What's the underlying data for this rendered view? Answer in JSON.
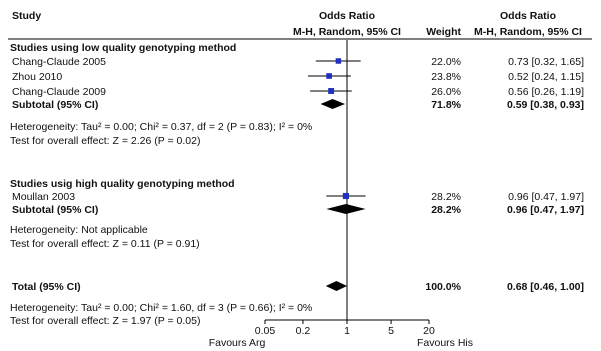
{
  "header": {
    "study": "Study",
    "or_title": "Odds Ratio",
    "or_method": "M-H, Random, 95% CI",
    "weight": "Weight",
    "or2_title": "Odds Ratio",
    "or2_method": "M-H, Random, 95% CI"
  },
  "groups": [
    {
      "title": "Studies using low quality genotyping method",
      "studies": [
        {
          "name": "Chang-Claude 2005",
          "weight": "22.0%",
          "ci_text": "0.73 [0.32, 1.65]",
          "or": 0.73,
          "lo": 0.32,
          "hi": 1.65
        },
        {
          "name": "Zhou 2010",
          "weight": "23.8%",
          "ci_text": "0.52 [0.24, 1.15]",
          "or": 0.52,
          "lo": 0.24,
          "hi": 1.15
        },
        {
          "name": "Chang-Claude 2009",
          "weight": "26.0%",
          "ci_text": "0.56 [0.26, 1.19]",
          "or": 0.56,
          "lo": 0.26,
          "hi": 1.19
        }
      ],
      "subtotal": {
        "label": "Subtotal (95% CI)",
        "weight": "71.8%",
        "ci_text": "0.59 [0.38, 0.93]",
        "or": 0.59,
        "lo": 0.38,
        "hi": 0.93
      },
      "heterogeneity": "Heterogeneity: Tau² = 0.00; Chi² = 0.37, df = 2 (P = 0.83); I² = 0%",
      "overall": "Test for overall effect: Z = 2.26 (P = 0.02)"
    },
    {
      "title": "Studies usig high quality genotyping method",
      "studies": [
        {
          "name": "Moullan 2003",
          "weight": "28.2%",
          "ci_text": "0.96 [0.47, 1.97]",
          "or": 0.96,
          "lo": 0.47,
          "hi": 1.97
        }
      ],
      "subtotal": {
        "label": "Subtotal (95% CI)",
        "weight": "28.2%",
        "ci_text": "0.96 [0.47, 1.97]",
        "or": 0.96,
        "lo": 0.47,
        "hi": 1.97
      },
      "heterogeneity": "Heterogeneity: Not applicable",
      "overall": "Test for overall effect: Z = 0.11 (P = 0.91)"
    }
  ],
  "total": {
    "label": "Total (95% CI)",
    "weight": "100.0%",
    "ci_text": "0.68 [0.46, 1.00]",
    "or": 0.68,
    "lo": 0.46,
    "hi": 1.0,
    "heterogeneity": "Heterogeneity: Tau² = 0.00; Chi² = 1.60, df = 3 (P = 0.66); I² = 0%",
    "overall": "Test for overall effect: Z = 1.97 (P = 0.05)"
  },
  "colors": {
    "marker": "#1f2fbf",
    "line": "#000000",
    "text": "#111111"
  },
  "chart_data": {
    "type": "forest",
    "scale": "log",
    "xlim": [
      0.05,
      20
    ],
    "xticks": [
      0.05,
      0.2,
      1,
      5,
      20
    ],
    "xtick_labels": [
      "0.05",
      "0.2",
      "1",
      "5",
      "20"
    ],
    "favours_left": "Favours Arg",
    "favours_right": "Favours His",
    "null_value": 1
  }
}
